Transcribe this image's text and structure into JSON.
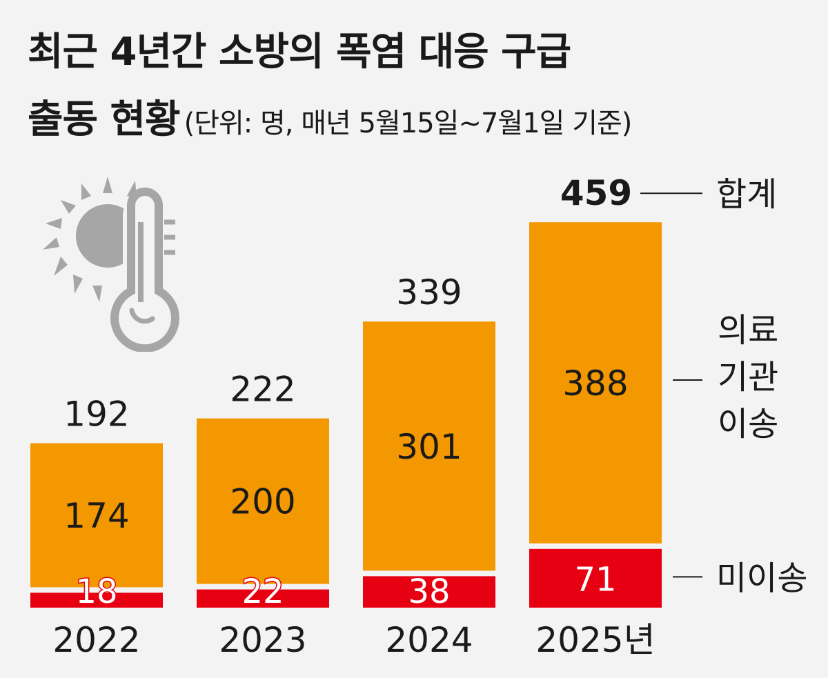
{
  "title": {
    "line1": "최근 4년간 소방의 폭염 대응 구급",
    "line2": "출동 현황",
    "subtitle": "(단위: 명, 매년 5월15일~7월1일 기준)"
  },
  "icon": "sun-thermometer-icon",
  "colors": {
    "background": "#f3f3f3",
    "transported": "#f39800",
    "not_transported": "#e60012",
    "icon": "#a6a6a6",
    "text": "#1a1a1a"
  },
  "chart_data": {
    "type": "bar",
    "stacked": true,
    "categories": [
      "2022",
      "2023",
      "2024",
      "2025년"
    ],
    "series": [
      {
        "name": "미이송",
        "values": [
          18,
          22,
          38,
          71
        ]
      },
      {
        "name": "의료\n기관\n이송",
        "values": [
          174,
          200,
          301,
          388
        ]
      }
    ],
    "totals": [
      192,
      222,
      339,
      459
    ],
    "total_label": "합계",
    "legend_position": "right",
    "grid": false
  }
}
